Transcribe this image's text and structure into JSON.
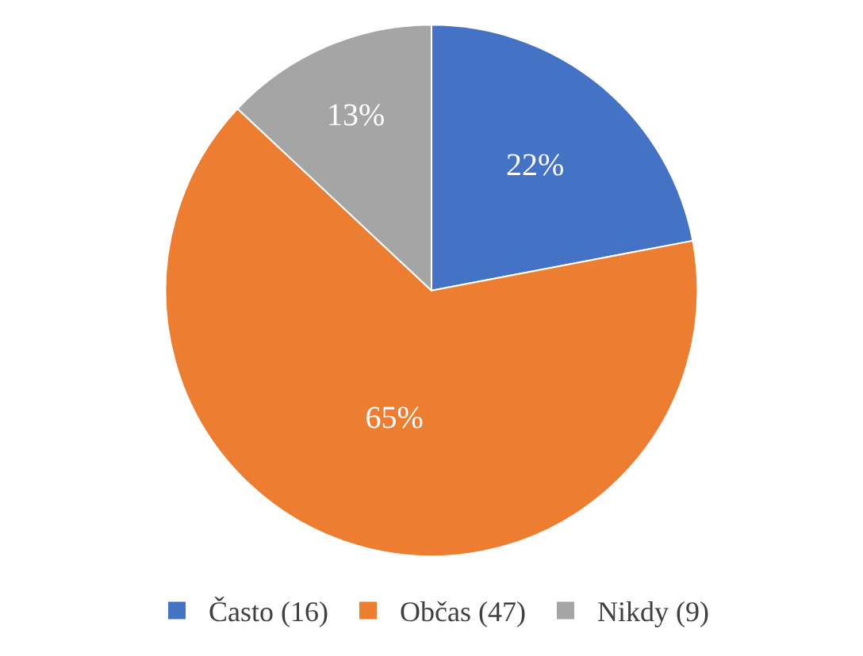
{
  "chart_data": {
    "type": "pie",
    "categories": [
      "Často (16)",
      "Občas (47)",
      "Nikdy (9)"
    ],
    "values": [
      22,
      65,
      13
    ],
    "colors": [
      "#4472c4",
      "#ed7d31",
      "#a5a5a5"
    ],
    "value_labels": [
      "22%",
      "65%",
      "13%"
    ],
    "legend": "bottom"
  }
}
